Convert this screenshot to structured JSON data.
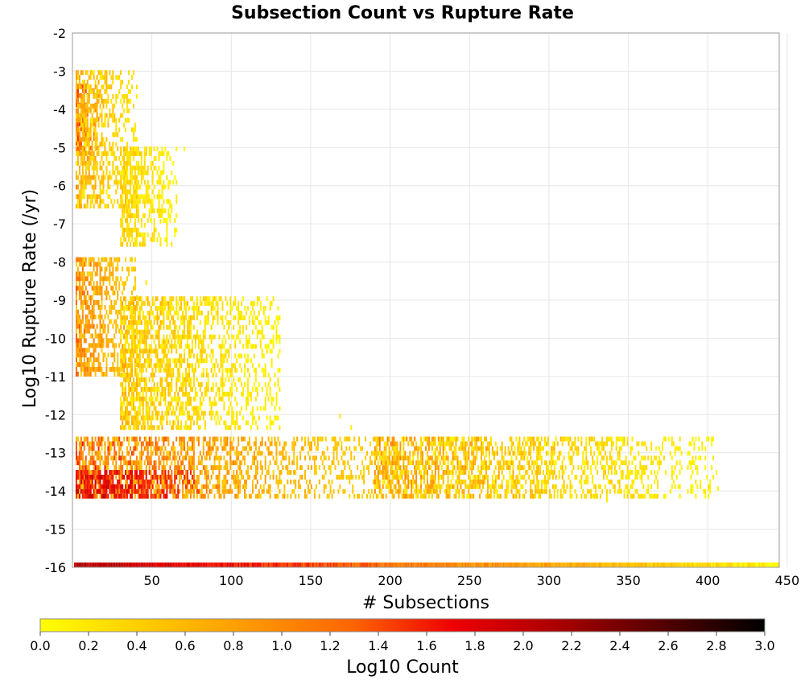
{
  "chart_data": {
    "type": "heatmap",
    "title": "Subsection Count vs Rupture Rate",
    "xlabel": "# Subsections",
    "ylabel": "Log10 Rupture Rate (/yr)",
    "xlim": [
      0,
      445
    ],
    "ylim": [
      -16,
      -2
    ],
    "x_ticks": [
      50,
      100,
      150,
      200,
      250,
      300,
      350,
      400,
      450
    ],
    "y_ticks": [
      -2,
      -3,
      -4,
      -5,
      -6,
      -7,
      -8,
      -9,
      -10,
      -11,
      -12,
      -13,
      -14,
      -15,
      -16
    ],
    "grid": true,
    "bin": {
      "dx": 1,
      "dy": 0.125
    },
    "colorbar": {
      "label": "Log10 Count",
      "range": [
        0,
        3
      ],
      "ticks": [
        "0.0",
        "0.2",
        "0.4",
        "0.6",
        "0.8",
        "1.0",
        "1.2",
        "1.4",
        "1.6",
        "1.8",
        "2.0",
        "2.2",
        "2.4",
        "2.6",
        "2.8",
        "3.0"
      ],
      "colors": [
        "#ffff00",
        "#ffcc00",
        "#ff9900",
        "#ff6600",
        "#ee0000",
        "#aa0000",
        "#550000",
        "#000000"
      ]
    },
    "regions": [
      {
        "name": "upper",
        "x": [
          2,
          16
        ],
        "y": [
          -5.2,
          -3.4
        ],
        "values": [
          0.8,
          1.6
        ]
      },
      {
        "name": "upper-spread",
        "x": [
          2,
          40
        ],
        "y": [
          -6.6,
          -3.0
        ],
        "values": [
          0.1,
          0.9
        ]
      },
      {
        "name": "upper-tail",
        "x": [
          30,
          65
        ],
        "y": [
          -7.6,
          -5.0
        ],
        "values": [
          0.0,
          0.5
        ]
      },
      {
        "name": "middle",
        "x": [
          2,
          40
        ],
        "y": [
          -11.0,
          -8.0
        ],
        "values": [
          0.3,
          1.3
        ]
      },
      {
        "name": "middle-spread",
        "x": [
          30,
          130
        ],
        "y": [
          -12.4,
          -9.0
        ],
        "values": [
          0.0,
          0.7
        ]
      },
      {
        "name": "lower-band",
        "x": [
          2,
          190
        ],
        "y": [
          -14.2,
          -12.6
        ],
        "values": [
          0.3,
          1.6
        ]
      },
      {
        "name": "lower-row-core",
        "x": [
          2,
          80
        ],
        "y": [
          -14.2,
          -13.5
        ],
        "values": [
          1.4,
          2.0
        ]
      },
      {
        "name": "lower-tail",
        "x": [
          190,
          405
        ],
        "y": [
          -14.2,
          -12.6
        ],
        "values": [
          0.0,
          1.0
        ]
      },
      {
        "name": "zero-rate-row",
        "x": [
          1,
          444
        ],
        "y": [
          -16.0,
          -15.9
        ],
        "values": [
          0.1,
          2.1
        ]
      }
    ],
    "isolated_points": [
      [
        70,
        -5.1
      ],
      [
        57,
        -5.7
      ],
      [
        61,
        -6.5
      ],
      [
        62,
        -7.6
      ],
      [
        46,
        -8.6
      ],
      [
        55,
        -7.0
      ],
      [
        168,
        -12.1
      ],
      [
        175,
        -12.4
      ],
      [
        228,
        -13.0
      ],
      [
        255,
        -13.5
      ],
      [
        260,
        -13.1
      ],
      [
        336,
        -14.3
      ],
      [
        400,
        -14.0
      ],
      [
        406,
        -14.0
      ],
      [
        250,
        -13.4
      ],
      [
        290,
        -13.7
      ]
    ]
  }
}
